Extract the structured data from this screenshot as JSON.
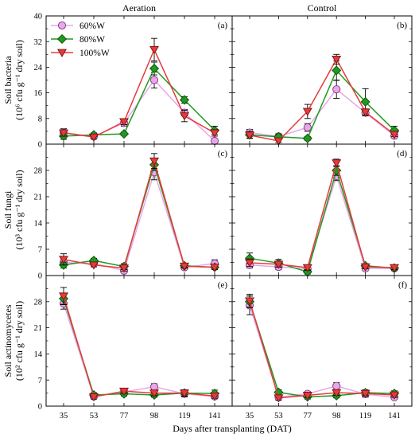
{
  "chart_data": {
    "type": "line",
    "columns": [
      "Aeration",
      "Control"
    ],
    "x": [
      35,
      53,
      77,
      98,
      119,
      141
    ],
    "xlabel": "Days after transplanting (DAT)",
    "legend": {
      "placement": "top-left of panel (a)",
      "entries": [
        {
          "label": "60%W",
          "color": "#e9a7e9",
          "marker": "circle"
        },
        {
          "label": "80%W",
          "color": "#1f9a1f",
          "marker": "diamond"
        },
        {
          "label": "100%W",
          "color": "#e53b3b",
          "marker": "triangle-down"
        }
      ]
    },
    "rows": [
      {
        "ylabel_line1": "Soil bacteria",
        "ylabel_line2": "(10⁶ cfu g⁻¹ dry soil)",
        "ylim": [
          0,
          40
        ],
        "yticks": [
          "0",
          "8",
          "16",
          "24",
          "32",
          "40"
        ],
        "panels": [
          {
            "tag": "(a)",
            "series": [
              {
                "name": "60%W",
                "values": [
                  3.6,
                  2.4,
                  6.6,
                  20.0,
                  9.8,
                  1.0
                ],
                "err": [
                  1.2,
                  0.6,
                  1.0,
                  2.5,
                  1.0,
                  0.6
                ]
              },
              {
                "name": "80%W",
                "values": [
                  2.5,
                  2.9,
                  3.2,
                  23.6,
                  13.8,
                  4.3
                ],
                "err": [
                  1.0,
                  0.6,
                  0.5,
                  2.0,
                  1.0,
                  1.3
                ]
              },
              {
                "name": "100%W",
                "values": [
                  3.5,
                  2.2,
                  7.0,
                  29.5,
                  8.8,
                  3.5
                ],
                "err": [
                  1.0,
                  0.6,
                  0.9,
                  3.5,
                  1.8,
                  1.0
                ]
              }
            ]
          },
          {
            "tag": "(b)",
            "series": [
              {
                "name": "60%W",
                "values": [
                  3.6,
                  2.4,
                  5.2,
                  17.1,
                  9.8,
                  2.6
                ],
                "err": [
                  1.0,
                  0.6,
                  1.2,
                  2.8,
                  1.0,
                  0.7
                ]
              },
              {
                "name": "80%W",
                "values": [
                  2.9,
                  2.3,
                  1.8,
                  23.0,
                  13.2,
                  4.3
                ],
                "err": [
                  1.0,
                  0.9,
                  0.6,
                  3.0,
                  4.1,
                  1.3
                ]
              },
              {
                "name": "100%W",
                "values": [
                  2.8,
                  1.0,
                  10.2,
                  26.5,
                  10.0,
                  3.0
                ],
                "err": [
                  1.0,
                  0.5,
                  2.2,
                  1.5,
                  1.0,
                  0.6
                ]
              }
            ]
          }
        ]
      },
      {
        "ylabel_line1": "Soil fungi",
        "ylabel_line2": "(10³ cfu g⁻¹ dry soil)",
        "ylim": [
          0,
          35
        ],
        "yticks": [
          "0",
          "7",
          "14",
          "21",
          "28"
        ],
        "panels": [
          {
            "tag": "(c)",
            "series": [
              {
                "name": "60%W",
                "values": [
                  3.5,
                  3.2,
                  1.3,
                  27.5,
                  2.2,
                  3.2
                ],
                "err": [
                  1.0,
                  0.5,
                  0.5,
                  2.0,
                  0.5,
                  1.0
                ]
              },
              {
                "name": "80%W",
                "values": [
                  2.8,
                  4.0,
                  2.4,
                  29.5,
                  2.6,
                  2.2
                ],
                "err": [
                  0.8,
                  0.6,
                  0.8,
                  1.5,
                  0.5,
                  0.5
                ]
              },
              {
                "name": "100%W",
                "values": [
                  4.3,
                  2.8,
                  2.0,
                  30.5,
                  2.5,
                  2.2
                ],
                "err": [
                  1.5,
                  0.5,
                  0.8,
                  2.0,
                  0.5,
                  0.6
                ]
              }
            ]
          },
          {
            "tag": "(d)",
            "series": [
              {
                "name": "60%W",
                "values": [
                  2.8,
                  2.3,
                  1.8,
                  26.5,
                  1.9,
                  1.9
                ],
                "err": [
                  0.8,
                  0.7,
                  0.6,
                  1.2,
                  0.5,
                  0.5
                ]
              },
              {
                "name": "80%W",
                "values": [
                  4.6,
                  3.3,
                  1.0,
                  28.0,
                  2.6,
                  2.0
                ],
                "err": [
                  1.4,
                  1.0,
                  0.6,
                  1.3,
                  0.5,
                  0.5
                ]
              },
              {
                "name": "100%W",
                "values": [
                  3.4,
                  3.0,
                  2.1,
                  30.0,
                  2.3,
                  2.1
                ],
                "err": [
                  1.0,
                  0.8,
                  0.7,
                  1.0,
                  0.5,
                  0.5
                ]
              }
            ]
          }
        ]
      },
      {
        "ylabel_line1": "Soil actinomycetes",
        "ylabel_line2": "(10² cfu g⁻¹ dry soil)",
        "ylim": [
          0,
          35
        ],
        "yticks": [
          "0",
          "7",
          "14",
          "21",
          "28"
        ],
        "panels": [
          {
            "tag": "(e)",
            "series": [
              {
                "name": "60%W",
                "values": [
                  27.5,
                  2.6,
                  3.8,
                  5.2,
                  3.3,
                  2.6
                ],
                "err": [
                  1.5,
                  0.6,
                  0.6,
                  0.8,
                  0.8,
                  0.6
                ]
              },
              {
                "name": "80%W",
                "values": [
                  28.8,
                  3.0,
                  3.3,
                  3.0,
                  3.5,
                  3.4
                ],
                "err": [
                  1.5,
                  0.6,
                  0.6,
                  0.6,
                  0.9,
                  0.9
                ]
              },
              {
                "name": "100%W",
                "values": [
                  29.5,
                  2.5,
                  4.0,
                  3.5,
                  3.5,
                  2.7
                ],
                "err": [
                  2.3,
                  0.6,
                  0.6,
                  0.7,
                  0.8,
                  0.6
                ]
              }
            ]
          },
          {
            "tag": "(f)",
            "series": [
              {
                "name": "60%W",
                "values": [
                  27.0,
                  2.4,
                  3.3,
                  5.4,
                  3.2,
                  2.4
                ],
                "err": [
                  2.5,
                  0.6,
                  0.6,
                  0.9,
                  0.8,
                  0.6
                ]
              },
              {
                "name": "80%W",
                "values": [
                  28.0,
                  3.7,
                  2.5,
                  2.8,
                  3.6,
                  3.4
                ],
                "err": [
                  1.5,
                  0.7,
                  0.6,
                  0.6,
                  0.8,
                  0.7
                ]
              },
              {
                "name": "100%W",
                "values": [
                  28.2,
                  2.2,
                  2.9,
                  3.6,
                  3.4,
                  3.0
                ],
                "err": [
                  1.8,
                  0.6,
                  0.6,
                  0.7,
                  0.7,
                  0.7
                ]
              }
            ]
          }
        ]
      }
    ]
  }
}
